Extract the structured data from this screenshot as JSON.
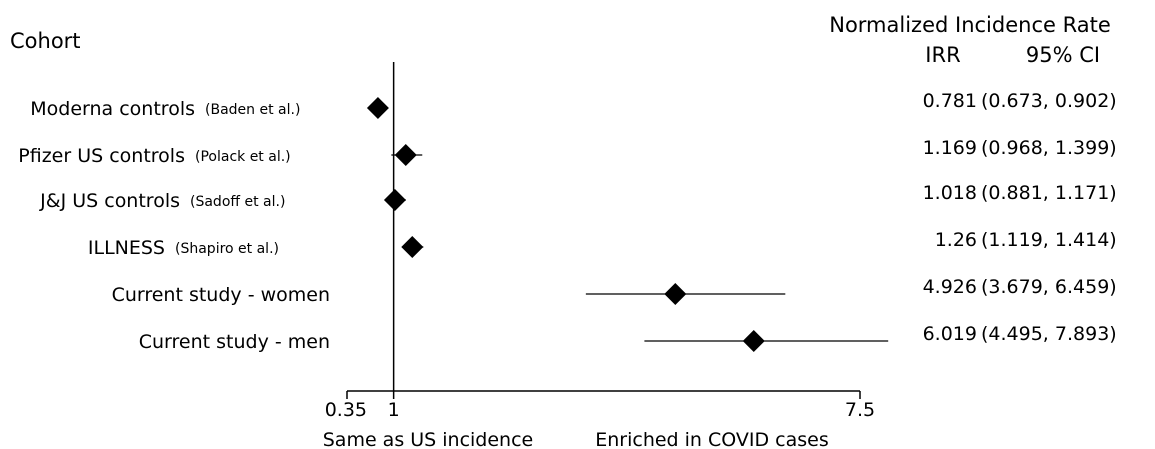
{
  "header": {
    "cohort_label": "Cohort",
    "rate_title": "Normalized Incidence Rate",
    "irr_header": "IRR",
    "ci_header": "95% CI"
  },
  "chart_data": {
    "type": "forest",
    "xlim": [
      0.35,
      7.5
    ],
    "xticks": [
      "0.35",
      "1",
      "7.5"
    ],
    "reference_line": 1,
    "xlabel_left": "Same as US incidence",
    "xlabel_right": "Enriched in COVID cases",
    "rows": [
      {
        "label": "Moderna controls",
        "citation": "(Baden et al.)",
        "irr": 0.781,
        "irr_text": "0.781",
        "ci_low": 0.673,
        "ci_high": 0.902,
        "ci_text": "(0.673, 0.902)"
      },
      {
        "label": "Pfizer US controls",
        "citation": "(Polack et al.)",
        "irr": 1.169,
        "irr_text": "1.169",
        "ci_low": 0.968,
        "ci_high": 1.399,
        "ci_text": "(0.968, 1.399)"
      },
      {
        "label": "J&J US controls",
        "citation": "(Sadoff et al.)",
        "irr": 1.018,
        "irr_text": "1.018",
        "ci_low": 0.881,
        "ci_high": 1.171,
        "ci_text": "(0.881, 1.171)"
      },
      {
        "label": "ILLNESS",
        "citation": "(Shapiro et al.)",
        "irr": 1.26,
        "irr_text": "1.26",
        "ci_low": 1.119,
        "ci_high": 1.414,
        "ci_text": "(1.119, 1.414)"
      },
      {
        "label": "Current study - women",
        "citation": "",
        "irr": 4.926,
        "irr_text": "4.926",
        "ci_low": 3.679,
        "ci_high": 6.459,
        "ci_text": "(3.679, 6.459)"
      },
      {
        "label": "Current study - men",
        "citation": "",
        "irr": 6.019,
        "irr_text": "6.019",
        "ci_low": 4.495,
        "ci_high": 7.893,
        "ci_text": "(4.495, 7.893)"
      }
    ]
  }
}
